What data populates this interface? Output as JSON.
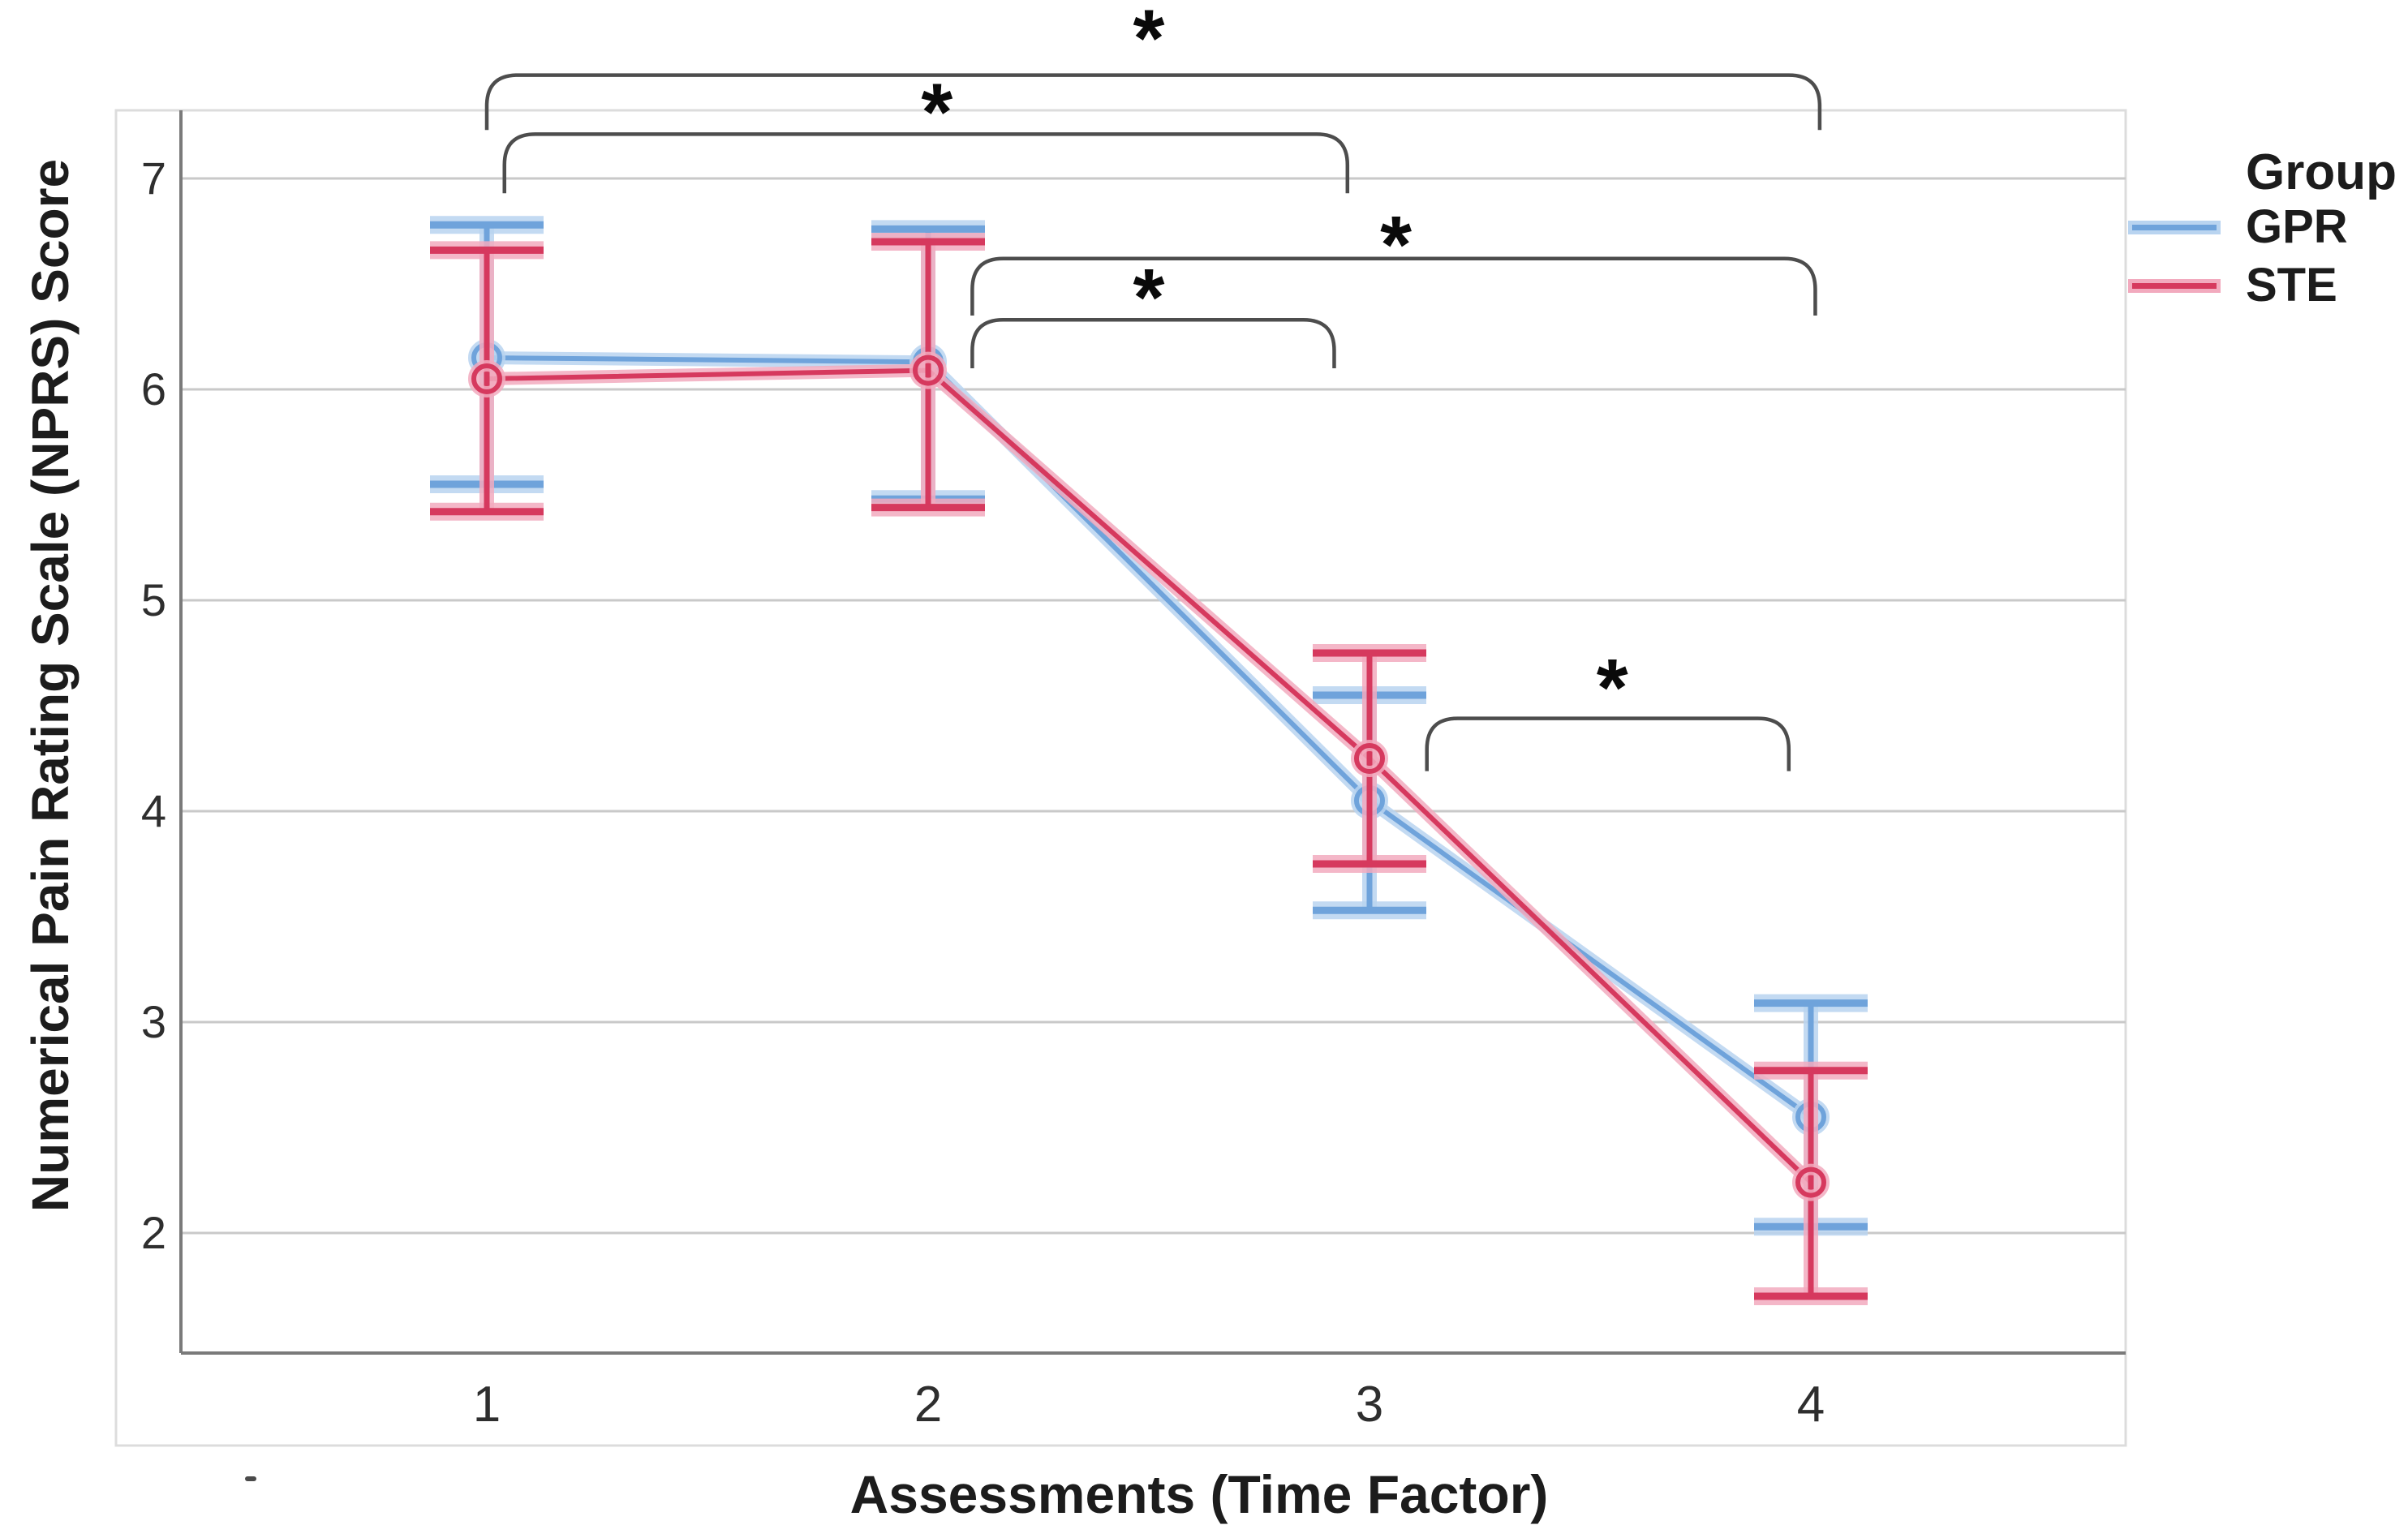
{
  "chart_data": {
    "type": "line",
    "title": "",
    "xlabel": "Assessments (Time Factor)",
    "ylabel": "Numerical Pain Rating Scale (NPRS) Score",
    "categories": [
      1,
      2,
      3,
      4
    ],
    "x_tick_labels": [
      "1",
      "2",
      "3",
      "4"
    ],
    "y_ticks": [
      7,
      6,
      5,
      4,
      3,
      2
    ],
    "y_tick_labels": [
      "7",
      "6",
      "5",
      "4",
      "3",
      "2"
    ],
    "ylim": [
      1.41,
      7.32
    ],
    "grid": "horizontal",
    "legend": {
      "title": "Group",
      "position": "top-right-outside"
    },
    "series": [
      {
        "name": "GPR",
        "color": "#6FA3DB",
        "halo": "#B9D4F0",
        "marker": "open-circle",
        "values": [
          6.15,
          6.13,
          4.05,
          2.55
        ],
        "ci_low": [
          5.55,
          5.48,
          3.53,
          2.03
        ],
        "ci_high": [
          6.78,
          6.76,
          4.55,
          3.09
        ]
      },
      {
        "name": "STE",
        "color": "#D6395E",
        "halo": "#F2AABE",
        "marker": "open-circle",
        "values": [
          6.05,
          6.09,
          4.25,
          2.24
        ],
        "ci_low": [
          5.42,
          5.44,
          3.75,
          1.7
        ],
        "ci_high": [
          6.66,
          6.7,
          4.75,
          2.77
        ]
      }
    ],
    "significance_brackets": [
      {
        "pair": "1 vs 4",
        "label": "*",
        "x1": 1.0,
        "x2": 4.02,
        "y": 7.49,
        "drop": 0.26,
        "star_x": 2.5,
        "star_y": 7.71
      },
      {
        "pair": "1 vs 3",
        "label": "*",
        "x1": 1.04,
        "x2": 2.95,
        "y": 7.21,
        "drop": 0.28,
        "star_x": 2.02,
        "star_y": 7.36
      },
      {
        "pair": "2 vs 4",
        "label": "*",
        "x1": 2.1,
        "x2": 4.01,
        "y": 6.62,
        "drop": 0.27,
        "star_x": 3.06,
        "star_y": 6.73
      },
      {
        "pair": "2 vs 3",
        "label": "*",
        "x1": 2.1,
        "x2": 2.92,
        "y": 6.33,
        "drop": 0.23,
        "star_x": 2.5,
        "star_y": 6.48
      },
      {
        "pair": "3 vs 4",
        "label": "*",
        "x1": 3.13,
        "x2": 3.95,
        "y": 4.44,
        "drop": 0.25,
        "star_x": 3.55,
        "star_y": 4.63
      }
    ],
    "colors": {
      "gridline": "#c9c9c9",
      "spine": "#7a7a7a",
      "frame": "#dcdcdc",
      "bracket": "#4d4d4d",
      "text": "#1c1c1c",
      "tick_text": "#2e2e2e",
      "star": "#0a0a0a"
    }
  }
}
